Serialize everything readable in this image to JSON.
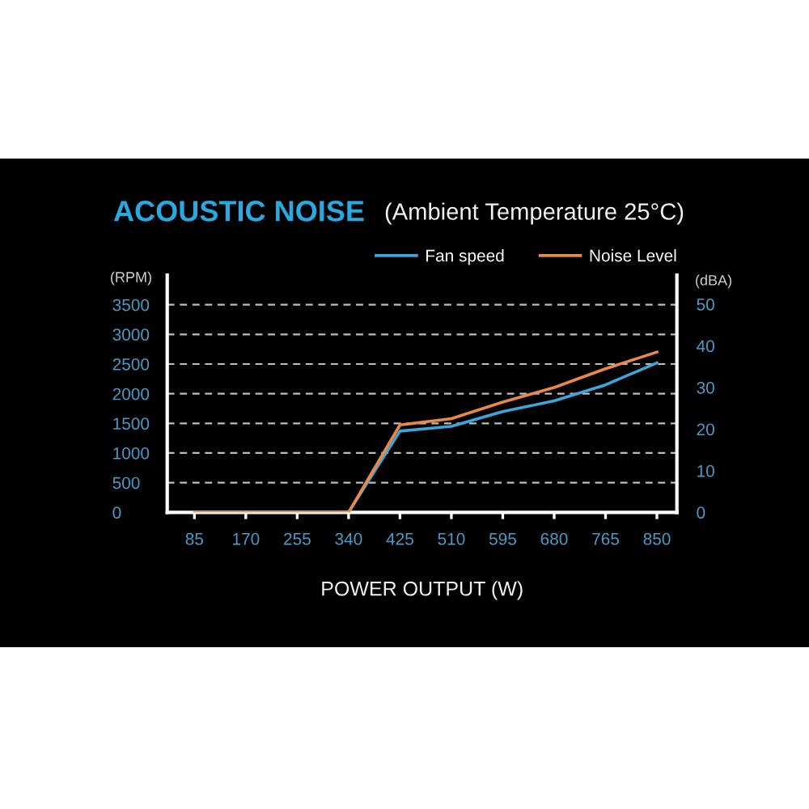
{
  "chart_data": {
    "type": "line",
    "title": "ACOUSTIC NOISE",
    "subtitle": "(Ambient Temperature 25°C)",
    "xlabel": "POWER OUTPUT (W)",
    "ylabel": "(RPM)",
    "y2label": "(dBA)",
    "x": [
      85,
      170,
      255,
      340,
      425,
      510,
      595,
      680,
      765,
      850
    ],
    "series": [
      {
        "name": "Fan speed",
        "color": "#3da5d9",
        "values": [
          null,
          null,
          null,
          0,
          1370,
          1450,
          1700,
          1880,
          2150,
          2520
        ]
      },
      {
        "name": "Noise Level",
        "color": "#e8894a",
        "axis": "y2",
        "values": [
          0,
          0,
          0,
          0,
          21,
          22.5,
          26.5,
          30,
          34.5,
          38.5
        ]
      }
    ],
    "xlim": [
      40,
      883
    ],
    "xticks": [
      85,
      170,
      255,
      340,
      425,
      510,
      595,
      680,
      765,
      850
    ],
    "ylim": [
      0,
      4000
    ],
    "yticks": [
      0,
      500,
      1000,
      1500,
      2000,
      2500,
      3000,
      3500
    ],
    "y2lim": [
      0,
      57
    ],
    "y2ticks": [
      0,
      10,
      20,
      30,
      40,
      50
    ],
    "grid": "y",
    "legend": "top right",
    "line_style": "solid"
  }
}
